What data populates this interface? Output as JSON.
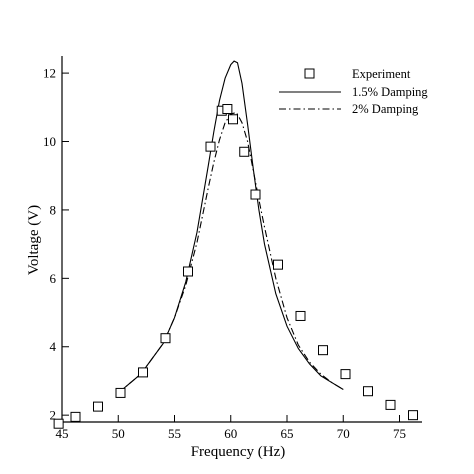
{
  "chart_data": {
    "type": "line",
    "title": "",
    "xlabel": "Frequency (Hz)",
    "ylabel": "Voltage (V)",
    "xlim": [
      45,
      77
    ],
    "ylim": [
      1.8,
      12.5
    ],
    "x_ticks": [
      45,
      50,
      55,
      60,
      65,
      70,
      75
    ],
    "y_ticks": [
      2,
      4,
      6,
      8,
      10,
      12
    ],
    "grid": false,
    "legend_position": "top-right",
    "series": [
      {
        "name": "Experiment",
        "style": "square-markers",
        "x": [
          44.7,
          46.2,
          48.2,
          50.2,
          52.2,
          54.2,
          56.2,
          58.2,
          59.2,
          59.7,
          60.2,
          61.2,
          62.2,
          64.2,
          66.2,
          68.2,
          70.2,
          72.2,
          74.2,
          76.2
        ],
        "y": [
          1.75,
          1.95,
          2.25,
          2.65,
          3.25,
          4.25,
          6.2,
          9.85,
          10.9,
          10.95,
          10.65,
          9.7,
          8.45,
          6.4,
          4.9,
          3.9,
          3.2,
          2.7,
          2.3,
          2.0
        ]
      },
      {
        "name": "1.5% Damping",
        "style": "solid",
        "x": [
          50,
          52,
          54,
          55,
          56,
          57,
          58,
          58.5,
          59,
          59.5,
          60,
          60.3,
          60.6,
          61,
          61.5,
          62,
          62.5,
          63,
          64,
          65,
          66,
          67,
          68,
          69,
          70
        ],
        "y": [
          2.65,
          3.2,
          4.1,
          4.85,
          5.9,
          7.35,
          9.3,
          10.3,
          11.2,
          11.85,
          12.25,
          12.35,
          12.3,
          11.7,
          10.5,
          9.2,
          8.0,
          7.0,
          5.55,
          4.6,
          3.95,
          3.5,
          3.15,
          2.95,
          2.75
        ]
      },
      {
        "name": "2% Damping",
        "style": "dash-dot",
        "x": [
          50,
          52,
          54,
          55,
          56,
          57,
          58,
          58.5,
          59,
          59.5,
          60,
          60.5,
          61,
          61.5,
          62,
          62.5,
          63,
          64,
          65,
          66,
          67,
          68,
          69,
          70
        ],
        "y": [
          2.65,
          3.2,
          4.1,
          4.85,
          5.8,
          7.05,
          8.65,
          9.4,
          10.05,
          10.55,
          10.8,
          10.85,
          10.55,
          10.0,
          9.15,
          8.3,
          7.5,
          6.0,
          4.85,
          4.05,
          3.55,
          3.2,
          2.95,
          2.75
        ]
      }
    ]
  }
}
